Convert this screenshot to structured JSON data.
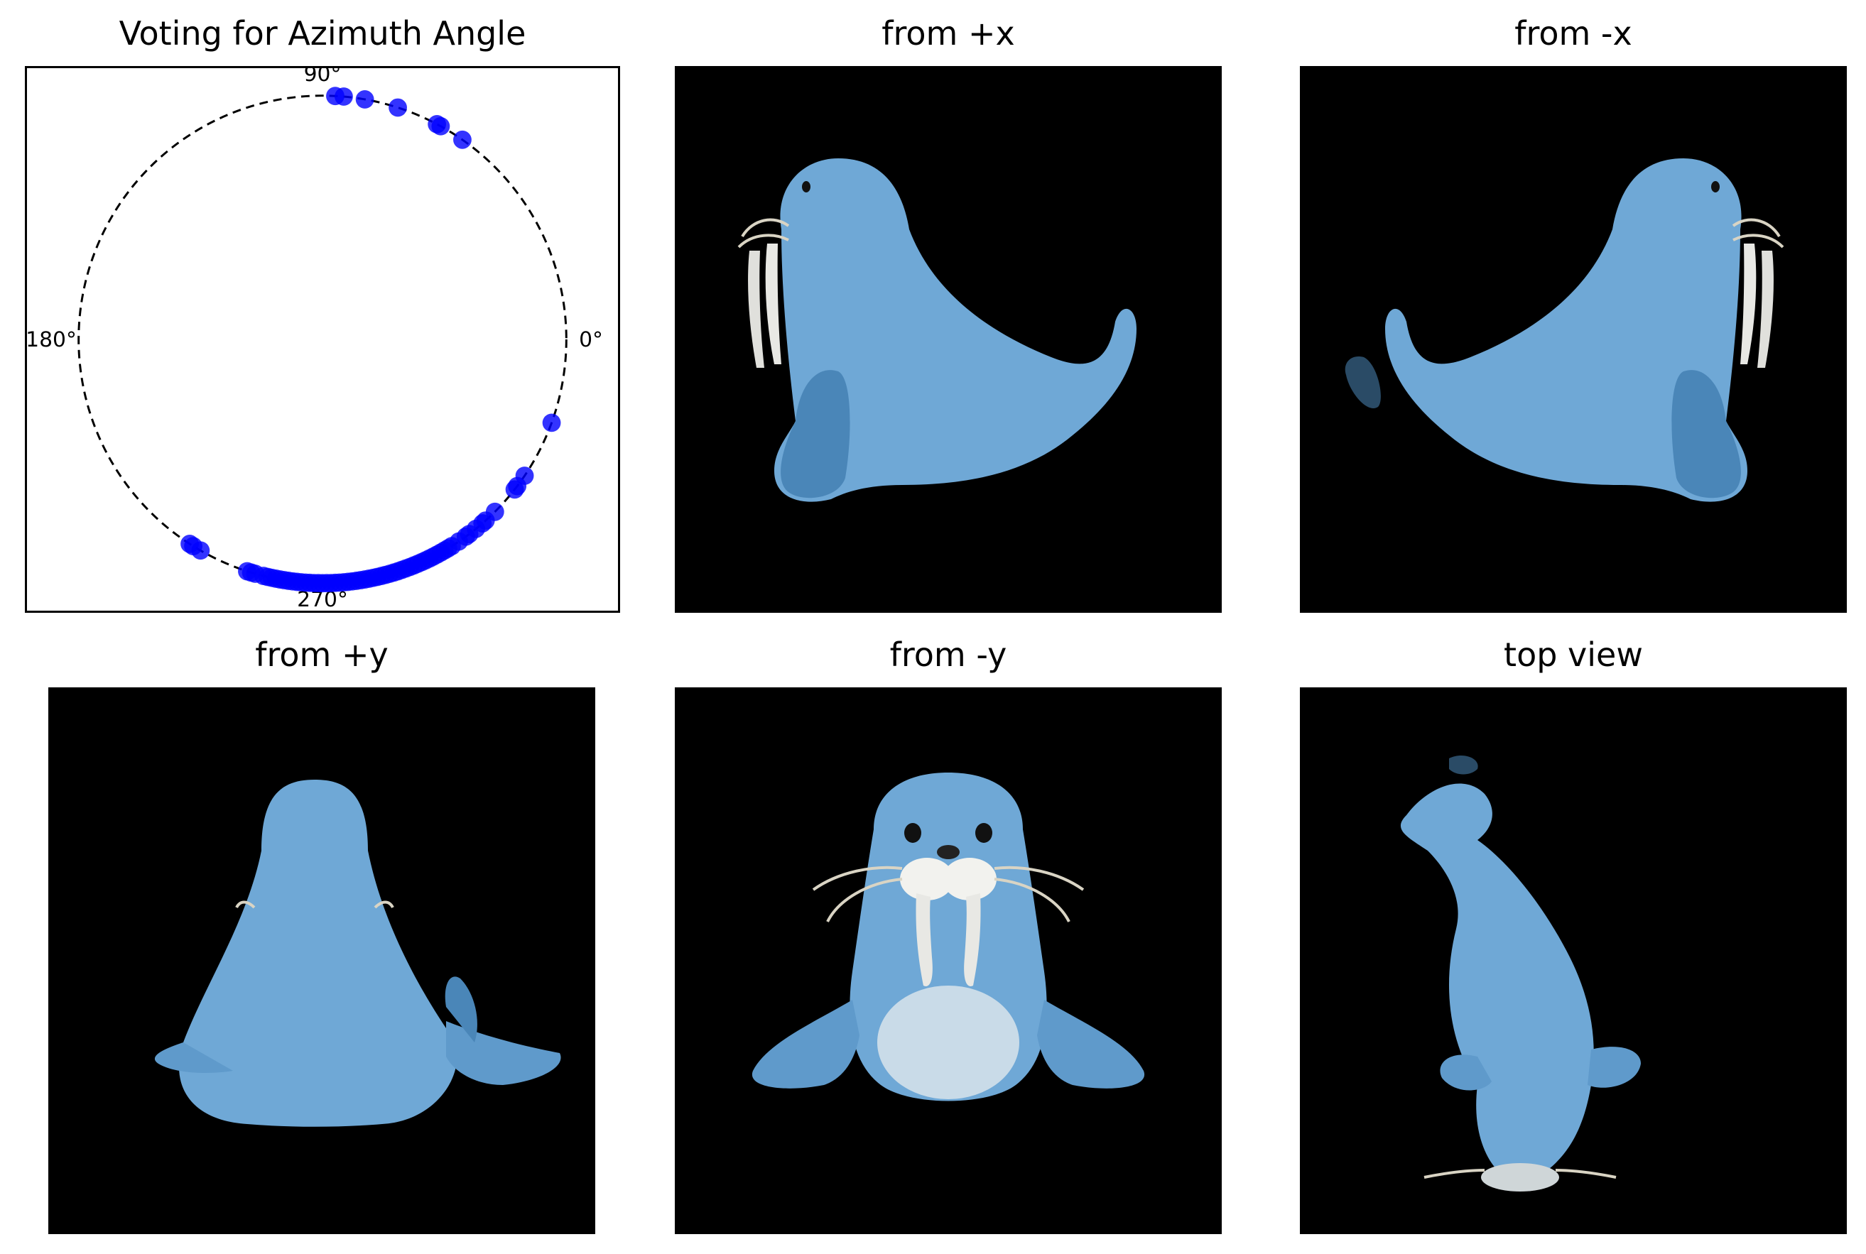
{
  "panels": {
    "vote_title": "Voting for Azimuth Angle",
    "view_px_title": "from +x",
    "view_nx_title": "from -x",
    "view_py_title": "from +y",
    "view_ny_title": "from -y",
    "view_top_title": "top view"
  },
  "colors": {
    "point": "#0000ff",
    "background_render": "#000000",
    "walrus_body": "#6fa8d6",
    "walrus_shade": "#4a86b8",
    "tusk": "#e8e8e4"
  },
  "chart_data": {
    "type": "scatter",
    "projection": "polar",
    "title": "Voting for Azimuth Angle",
    "angle_labels": [
      "0°",
      "90°",
      "180°",
      "270°"
    ],
    "angle_label_values": [
      0,
      90,
      180,
      270
    ],
    "radius": 1,
    "grid": false,
    "circle_style": "dashed",
    "series": [
      {
        "unit": "degrees",
        "values": [
          87,
          85,
          80,
          72,
          62,
          61,
          55,
          340,
          326,
          323,
          322,
          315,
          312,
          311,
          309,
          307,
          306,
          304,
          302,
          301,
          300,
          299,
          298,
          297,
          296,
          295,
          294,
          293,
          292,
          291,
          290,
          289,
          288,
          287,
          286,
          285,
          284,
          283,
          282,
          281,
          280,
          279,
          278,
          277,
          276,
          275,
          274,
          273,
          272,
          271,
          270,
          269,
          268,
          267,
          266,
          265,
          264,
          263,
          262,
          261,
          260,
          259,
          258,
          257,
          256,
          254,
          253,
          252,
          240,
          238,
          237
        ]
      }
    ]
  }
}
